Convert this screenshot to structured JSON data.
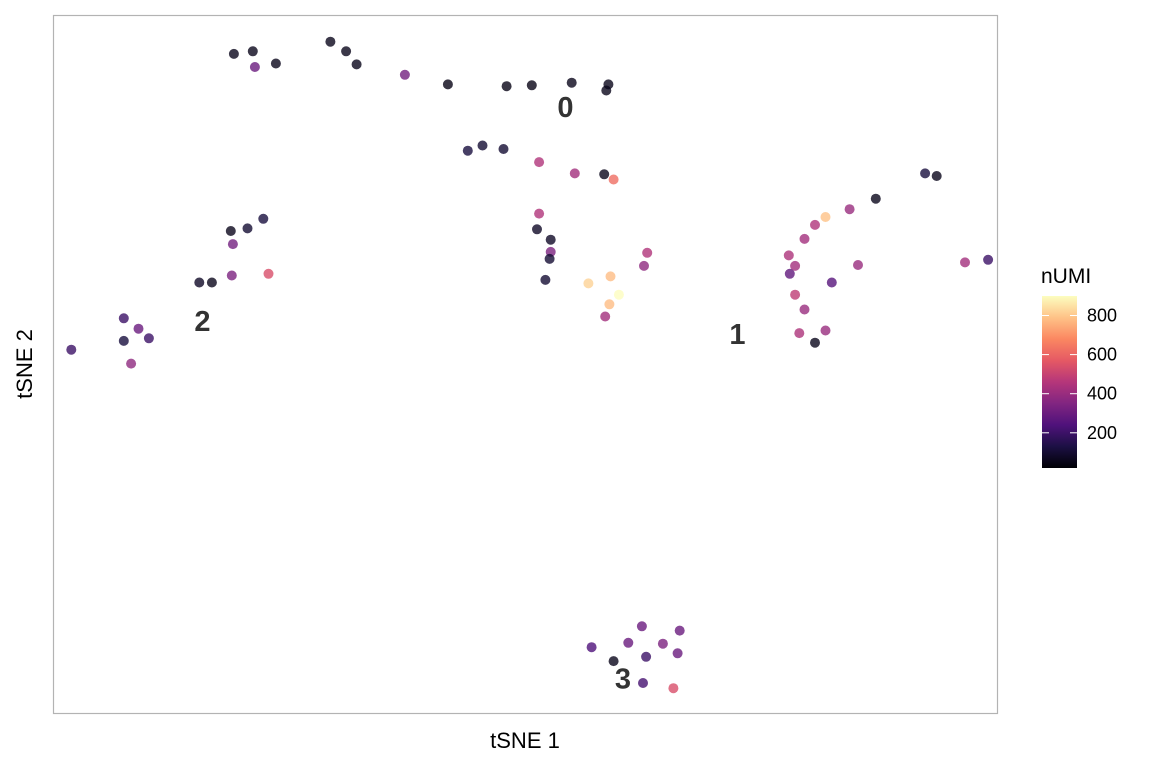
{
  "chart_data": {
    "type": "scatter",
    "title": "",
    "xlabel": "tSNE 1",
    "ylabel": "tSNE 2",
    "xlim": [
      -45,
      45
    ],
    "ylim": [
      -40,
      40
    ],
    "grid": false,
    "axis_ticks_shown": false,
    "color_scale": {
      "name": "magma",
      "variable": "nUMI",
      "min": 20,
      "max": 900,
      "stops": [
        "#000004",
        "#1c1044",
        "#4f127b",
        "#812581",
        "#b5367a",
        "#e55964",
        "#fb8761",
        "#fec287",
        "#fcfdbf"
      ]
    },
    "legend": {
      "title": "nUMI",
      "position": "right",
      "ticks": [
        200,
        400,
        600,
        800
      ]
    },
    "cluster_labels": [
      {
        "text": "0",
        "x": 3.8,
        "y": 29.5
      },
      {
        "text": "1",
        "x": 20.2,
        "y": 3.5
      },
      {
        "text": "2",
        "x": -30.8,
        "y": 5.0
      },
      {
        "text": "3",
        "x": 9.3,
        "y": -36.0
      }
    ],
    "points": [
      {
        "x": -27.8,
        "y": 35.6,
        "nUMI": 60
      },
      {
        "x": -26.0,
        "y": 35.9,
        "nUMI": 60
      },
      {
        "x": -25.8,
        "y": 34.1,
        "nUMI": 300
      },
      {
        "x": -23.8,
        "y": 34.5,
        "nUMI": 60
      },
      {
        "x": -18.6,
        "y": 37.0,
        "nUMI": 60
      },
      {
        "x": -17.1,
        "y": 35.9,
        "nUMI": 60
      },
      {
        "x": -16.1,
        "y": 34.4,
        "nUMI": 60
      },
      {
        "x": -11.5,
        "y": 33.2,
        "nUMI": 320
      },
      {
        "x": -7.4,
        "y": 32.1,
        "nUMI": 50
      },
      {
        "x": -1.8,
        "y": 31.9,
        "nUMI": 50
      },
      {
        "x": 0.6,
        "y": 32.0,
        "nUMI": 50
      },
      {
        "x": 4.4,
        "y": 32.3,
        "nUMI": 60
      },
      {
        "x": 7.7,
        "y": 31.4,
        "nUMI": 60
      },
      {
        "x": 7.9,
        "y": 32.1,
        "nUMI": 60
      },
      {
        "x": -5.5,
        "y": 24.5,
        "nUMI": 120
      },
      {
        "x": -4.1,
        "y": 25.1,
        "nUMI": 100
      },
      {
        "x": -2.1,
        "y": 24.7,
        "nUMI": 100
      },
      {
        "x": 1.3,
        "y": 23.2,
        "nUMI": 450
      },
      {
        "x": 4.7,
        "y": 21.9,
        "nUMI": 420
      },
      {
        "x": 7.5,
        "y": 21.8,
        "nUMI": 60
      },
      {
        "x": 8.4,
        "y": 21.2,
        "nUMI": 620
      },
      {
        "x": 1.3,
        "y": 17.3,
        "nUMI": 450
      },
      {
        "x": 1.1,
        "y": 15.5,
        "nUMI": 80
      },
      {
        "x": 2.4,
        "y": 14.3,
        "nUMI": 80
      },
      {
        "x": 2.4,
        "y": 12.9,
        "nUMI": 340
      },
      {
        "x": 2.3,
        "y": 12.1,
        "nUMI": 100
      },
      {
        "x": 1.9,
        "y": 9.7,
        "nUMI": 100
      },
      {
        "x": 11.6,
        "y": 12.8,
        "nUMI": 450
      },
      {
        "x": 11.3,
        "y": 11.3,
        "nUMI": 380
      },
      {
        "x": 8.1,
        "y": 10.1,
        "nUMI": 780
      },
      {
        "x": 6.0,
        "y": 9.3,
        "nUMI": 820
      },
      {
        "x": 8.9,
        "y": 8.0,
        "nUMI": 900
      },
      {
        "x": 8.0,
        "y": 6.9,
        "nUMI": 780
      },
      {
        "x": 7.6,
        "y": 5.5,
        "nUMI": 420
      },
      {
        "x": -28.1,
        "y": 15.3,
        "nUMI": 60
      },
      {
        "x": -26.5,
        "y": 15.6,
        "nUMI": 100
      },
      {
        "x": -25.0,
        "y": 16.7,
        "nUMI": 120
      },
      {
        "x": -27.9,
        "y": 13.8,
        "nUMI": 320
      },
      {
        "x": -28.0,
        "y": 10.2,
        "nUMI": 340
      },
      {
        "x": -24.5,
        "y": 10.4,
        "nUMI": 540
      },
      {
        "x": -31.1,
        "y": 9.4,
        "nUMI": 80
      },
      {
        "x": -29.9,
        "y": 9.4,
        "nUMI": 60
      },
      {
        "x": -38.3,
        "y": 5.3,
        "nUMI": 200
      },
      {
        "x": -36.9,
        "y": 4.1,
        "nUMI": 300
      },
      {
        "x": -35.9,
        "y": 3.0,
        "nUMI": 200
      },
      {
        "x": -38.3,
        "y": 2.7,
        "nUMI": 120
      },
      {
        "x": -43.3,
        "y": 1.7,
        "nUMI": 200
      },
      {
        "x": -37.6,
        "y": 0.1,
        "nUMI": 380
      },
      {
        "x": 38.1,
        "y": 21.9,
        "nUMI": 120
      },
      {
        "x": 39.2,
        "y": 21.6,
        "nUMI": 60
      },
      {
        "x": 33.4,
        "y": 19.0,
        "nUMI": 60
      },
      {
        "x": 30.9,
        "y": 17.8,
        "nUMI": 400
      },
      {
        "x": 28.6,
        "y": 16.9,
        "nUMI": 790
      },
      {
        "x": 27.6,
        "y": 16.0,
        "nUMI": 450
      },
      {
        "x": 26.6,
        "y": 14.4,
        "nUMI": 420
      },
      {
        "x": 25.1,
        "y": 12.5,
        "nUMI": 440
      },
      {
        "x": 25.7,
        "y": 11.3,
        "nUMI": 420
      },
      {
        "x": 31.7,
        "y": 11.4,
        "nUMI": 400
      },
      {
        "x": 25.2,
        "y": 10.4,
        "nUMI": 280
      },
      {
        "x": 29.2,
        "y": 9.4,
        "nUMI": 260
      },
      {
        "x": 25.7,
        "y": 8.0,
        "nUMI": 480
      },
      {
        "x": 26.6,
        "y": 6.3,
        "nUMI": 400
      },
      {
        "x": 26.1,
        "y": 3.6,
        "nUMI": 440
      },
      {
        "x": 28.6,
        "y": 3.9,
        "nUMI": 400
      },
      {
        "x": 27.6,
        "y": 2.5,
        "nUMI": 60
      },
      {
        "x": 41.9,
        "y": 11.7,
        "nUMI": 420
      },
      {
        "x": 44.1,
        "y": 12.0,
        "nUMI": 200
      },
      {
        "x": 11.1,
        "y": -30.0,
        "nUMI": 300
      },
      {
        "x": 14.7,
        "y": -30.5,
        "nUMI": 300
      },
      {
        "x": 9.8,
        "y": -31.9,
        "nUMI": 300
      },
      {
        "x": 13.1,
        "y": -32.0,
        "nUMI": 340
      },
      {
        "x": 6.3,
        "y": -32.4,
        "nUMI": 240
      },
      {
        "x": 11.5,
        "y": -33.5,
        "nUMI": 200
      },
      {
        "x": 14.5,
        "y": -33.1,
        "nUMI": 300
      },
      {
        "x": 8.4,
        "y": -34.0,
        "nUMI": 60
      },
      {
        "x": 11.2,
        "y": -36.5,
        "nUMI": 220
      },
      {
        "x": 14.1,
        "y": -37.1,
        "nUMI": 540
      }
    ]
  }
}
